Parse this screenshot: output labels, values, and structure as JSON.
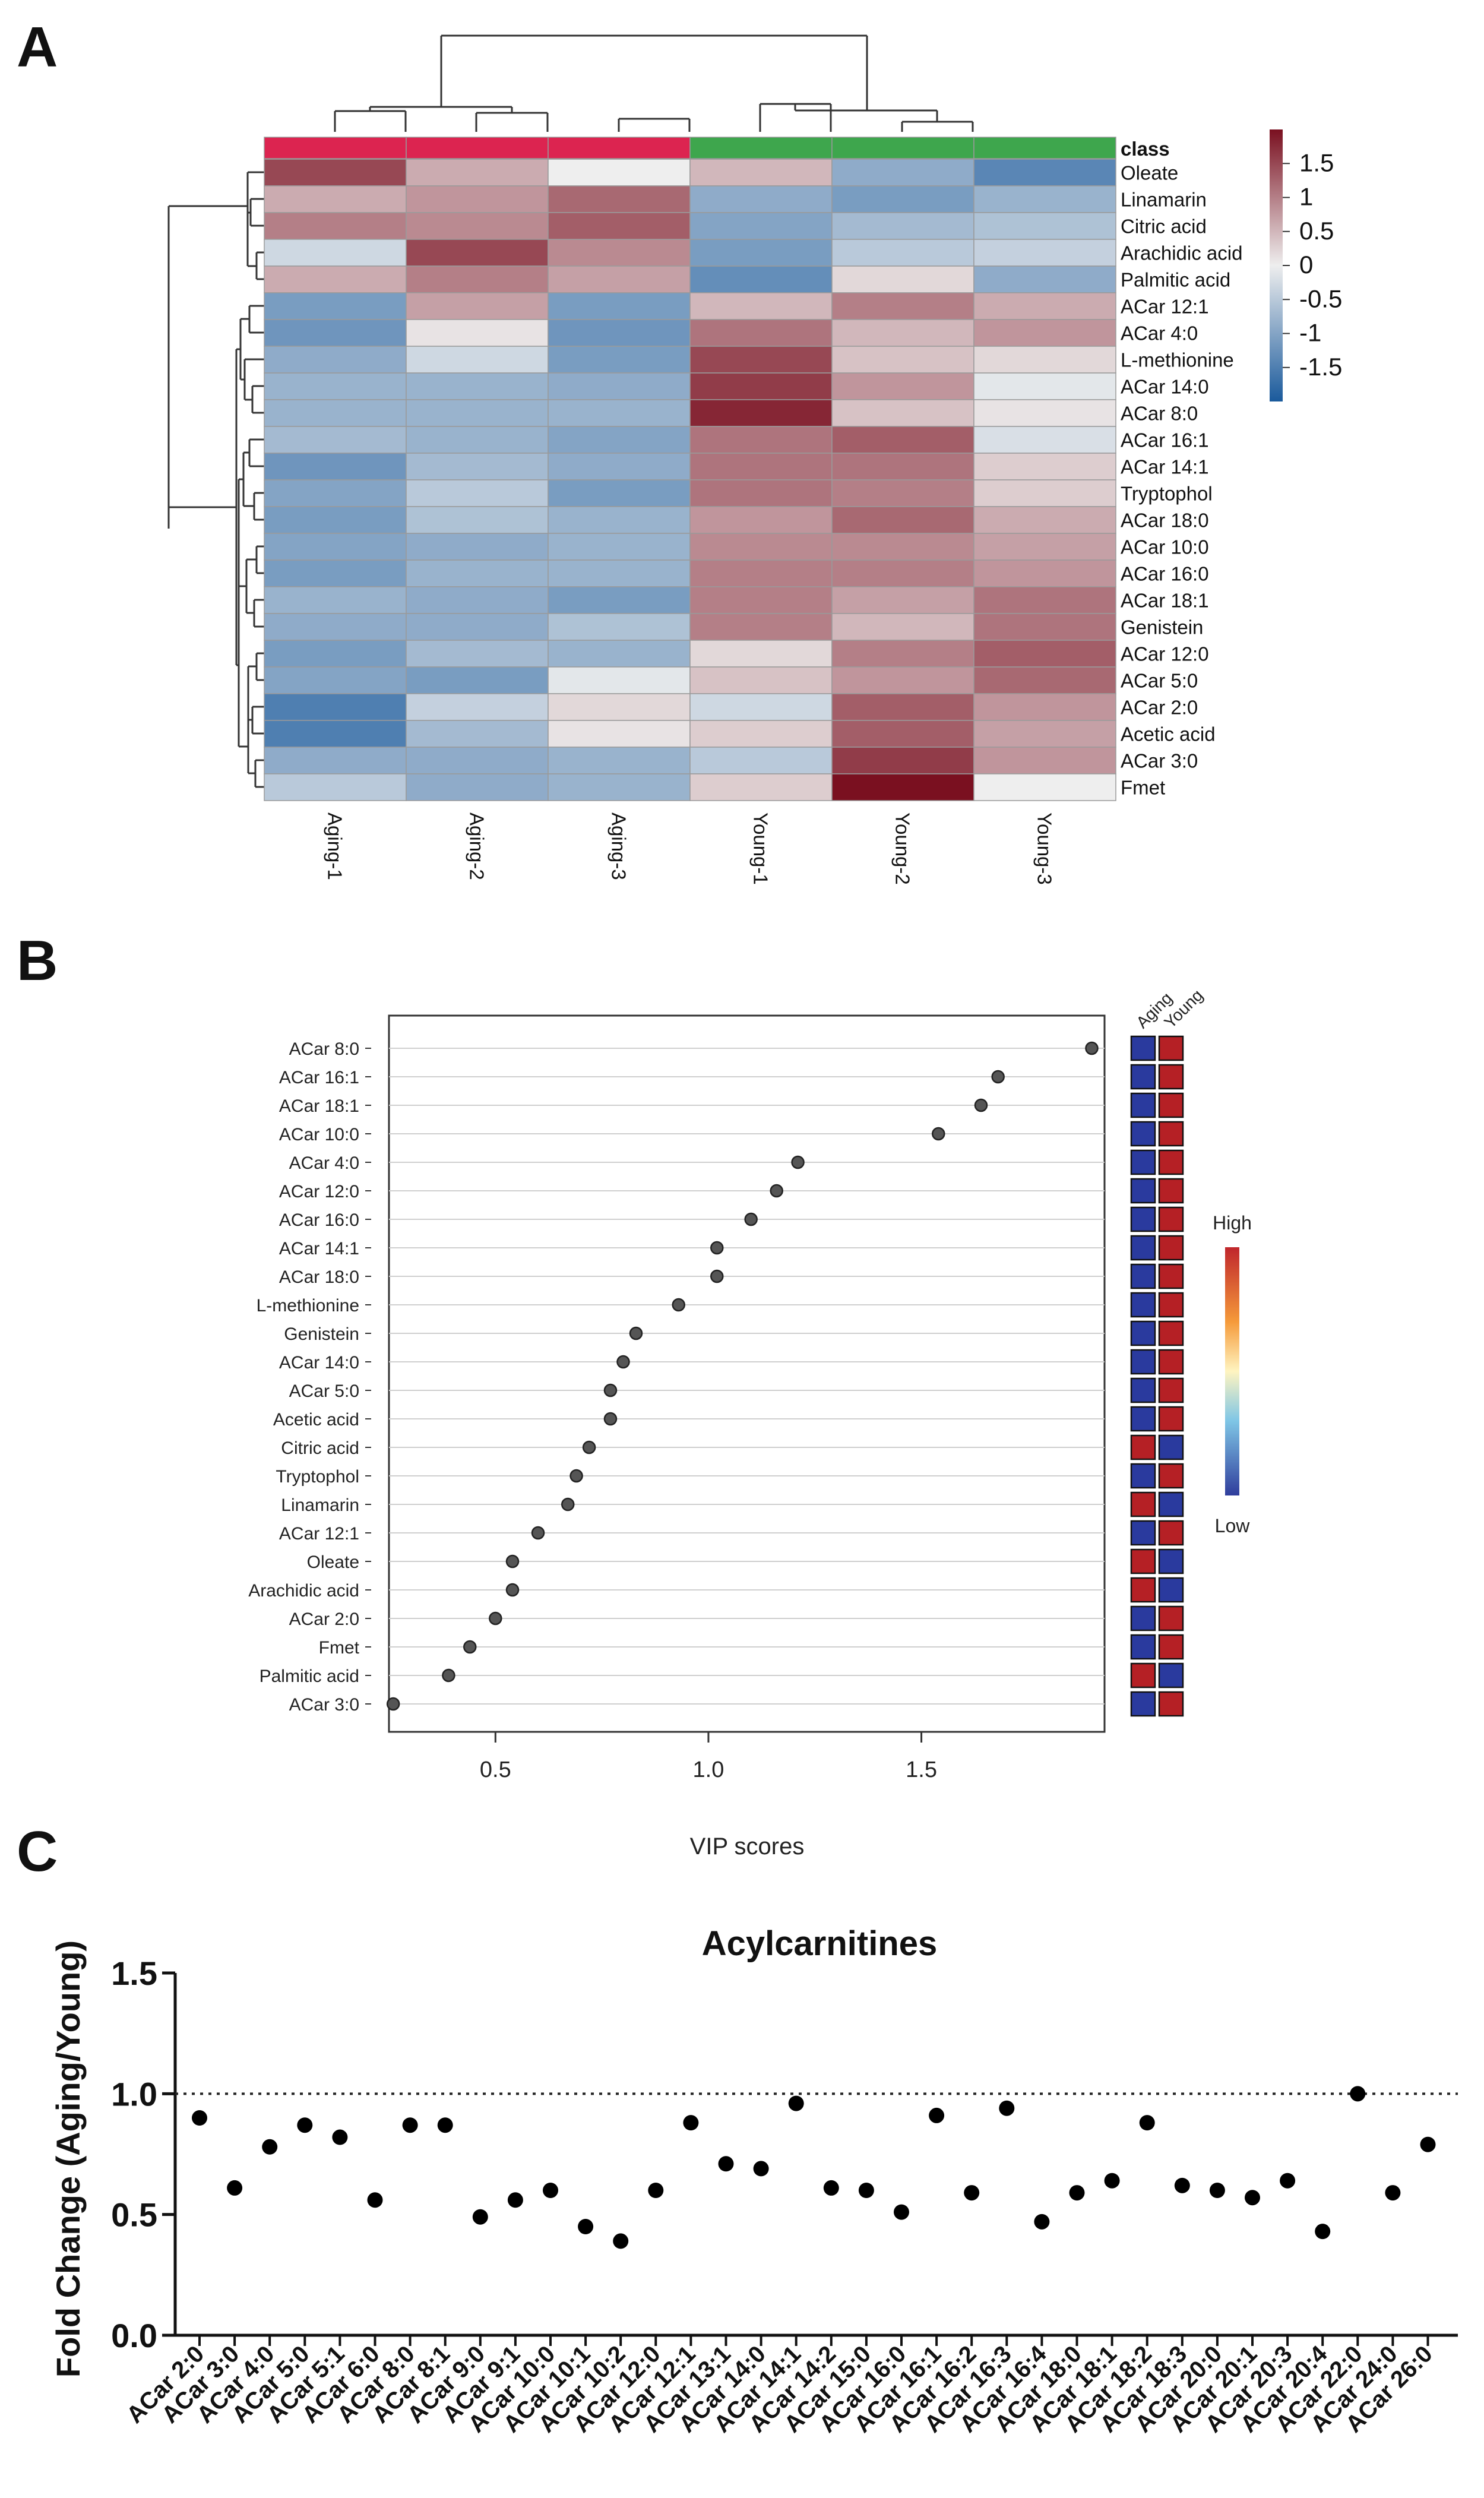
{
  "panels": {
    "A": "A",
    "B": "B",
    "C": "C"
  },
  "chart_data": [
    {
      "type": "heatmap",
      "class_label": "class",
      "columns": [
        "Aging-1",
        "Aging-2",
        "Aging-3",
        "Young-1",
        "Young-2",
        "Young-3"
      ],
      "column_classes": [
        "Aging",
        "Aging",
        "Aging",
        "Young",
        "Young",
        "Young"
      ],
      "class_colors": {
        "Aging": "#dc2450",
        "Young": "#3ea64d"
      },
      "rows": [
        "Oleate",
        "Linamarin",
        "Citric acid",
        "Arachidic acid",
        "Palmitic acid",
        "ACar 12:1",
        "ACar 4:0",
        "L-methionine",
        "ACar 14:0",
        "ACar 8:0",
        "ACar 16:1",
        "ACar 14:1",
        "Tryptophol",
        "ACar 18:0",
        "ACar 10:0",
        "ACar 16:0",
        "ACar 18:1",
        "Genistein",
        "ACar 12:0",
        "ACar 5:0",
        "ACar 2:0",
        "Acetic acid",
        "ACar 3:0",
        "Fmet"
      ],
      "values": [
        [
          1.5,
          0.6,
          0.0,
          0.5,
          -0.9,
          -1.4
        ],
        [
          0.6,
          0.8,
          1.2,
          -0.9,
          -1.1,
          -0.8
        ],
        [
          1.0,
          0.9,
          1.3,
          -1.0,
          -0.7,
          -0.6
        ],
        [
          -0.3,
          1.5,
          0.9,
          -1.1,
          -0.5,
          -0.4
        ],
        [
          0.6,
          1.0,
          0.7,
          -1.3,
          0.2,
          -0.9
        ],
        [
          -1.1,
          0.7,
          -1.1,
          0.5,
          1.0,
          0.6
        ],
        [
          -1.2,
          0.1,
          -1.2,
          1.1,
          0.5,
          0.8
        ],
        [
          -0.9,
          -0.3,
          -1.1,
          1.5,
          0.4,
          0.2
        ],
        [
          -0.8,
          -0.8,
          -0.9,
          1.6,
          0.8,
          -0.1
        ],
        [
          -0.8,
          -0.8,
          -0.8,
          1.8,
          0.4,
          0.1
        ],
        [
          -0.7,
          -0.8,
          -1.0,
          1.1,
          1.3,
          -0.2
        ],
        [
          -1.2,
          -0.7,
          -0.9,
          1.1,
          1.1,
          0.3
        ],
        [
          -1.0,
          -0.5,
          -1.1,
          1.1,
          1.0,
          0.3
        ],
        [
          -1.1,
          -0.6,
          -0.8,
          0.8,
          1.2,
          0.6
        ],
        [
          -1.0,
          -0.9,
          -0.8,
          0.9,
          0.9,
          0.7
        ],
        [
          -1.1,
          -0.8,
          -0.8,
          1.0,
          1.0,
          0.8
        ],
        [
          -0.8,
          -0.9,
          -1.1,
          1.0,
          0.7,
          1.1
        ],
        [
          -0.9,
          -0.9,
          -0.6,
          1.0,
          0.5,
          1.1
        ],
        [
          -1.1,
          -0.7,
          -0.8,
          0.2,
          1.0,
          1.3
        ],
        [
          -1.0,
          -1.1,
          -0.1,
          0.4,
          0.8,
          1.2
        ],
        [
          -1.5,
          -0.4,
          0.2,
          -0.3,
          1.3,
          0.8
        ],
        [
          -1.5,
          -0.7,
          0.1,
          0.3,
          1.3,
          0.7
        ],
        [
          -0.9,
          -0.9,
          -0.8,
          -0.5,
          1.6,
          0.8
        ],
        [
          -0.5,
          -0.9,
          -0.8,
          0.3,
          2.0,
          0.0
        ]
      ],
      "scale_ticks": [
        "1.5",
        "1",
        "0.5",
        "0",
        "-0.5",
        "-1",
        "-1.5"
      ],
      "colors": {
        "low": "#1a5a9c",
        "mid": "#eeeeee",
        "high": "#7a1020"
      }
    },
    {
      "type": "scatter",
      "xlabel": "VIP scores",
      "xlim": [
        0.25,
        1.93
      ],
      "xticks": [
        "0.5",
        "1.0",
        "1.5"
      ],
      "group_labels": [
        "Aging",
        "Young"
      ],
      "legend_high": "High",
      "legend_low": "Low",
      "colors": {
        "high": "#b52025",
        "low": "#2a3a9e",
        "point": "#555555"
      },
      "points": [
        {
          "label": "ACar 8:0",
          "vip": 1.9,
          "aging": "low",
          "young": "high"
        },
        {
          "label": "ACar 16:1",
          "vip": 1.68,
          "aging": "low",
          "young": "high"
        },
        {
          "label": "ACar 18:1",
          "vip": 1.64,
          "aging": "low",
          "young": "high"
        },
        {
          "label": "ACar 10:0",
          "vip": 1.54,
          "aging": "low",
          "young": "high"
        },
        {
          "label": "ACar 4:0",
          "vip": 1.21,
          "aging": "low",
          "young": "high"
        },
        {
          "label": "ACar 12:0",
          "vip": 1.16,
          "aging": "low",
          "young": "high"
        },
        {
          "label": "ACar 16:0",
          "vip": 1.1,
          "aging": "low",
          "young": "high"
        },
        {
          "label": "ACar 14:1",
          "vip": 1.02,
          "aging": "low",
          "young": "high"
        },
        {
          "label": "ACar 18:0",
          "vip": 1.02,
          "aging": "low",
          "young": "high"
        },
        {
          "label": "L-methionine",
          "vip": 0.93,
          "aging": "low",
          "young": "high"
        },
        {
          "label": "Genistein",
          "vip": 0.83,
          "aging": "low",
          "young": "high"
        },
        {
          "label": "ACar 14:0",
          "vip": 0.8,
          "aging": "low",
          "young": "high"
        },
        {
          "label": "ACar 5:0",
          "vip": 0.77,
          "aging": "low",
          "young": "high"
        },
        {
          "label": "Acetic acid",
          "vip": 0.77,
          "aging": "low",
          "young": "high"
        },
        {
          "label": "Citric acid",
          "vip": 0.72,
          "aging": "high",
          "young": "low"
        },
        {
          "label": "Tryptophol",
          "vip": 0.69,
          "aging": "low",
          "young": "high"
        },
        {
          "label": "Linamarin",
          "vip": 0.67,
          "aging": "high",
          "young": "low"
        },
        {
          "label": "ACar 12:1",
          "vip": 0.6,
          "aging": "low",
          "young": "high"
        },
        {
          "label": "Oleate",
          "vip": 0.54,
          "aging": "high",
          "young": "low"
        },
        {
          "label": "Arachidic acid",
          "vip": 0.54,
          "aging": "high",
          "young": "low"
        },
        {
          "label": "ACar 2:0",
          "vip": 0.5,
          "aging": "low",
          "young": "high"
        },
        {
          "label": "Fmet",
          "vip": 0.44,
          "aging": "low",
          "young": "high"
        },
        {
          "label": "Palmitic acid",
          "vip": 0.39,
          "aging": "high",
          "young": "low"
        },
        {
          "label": "ACar 3:0",
          "vip": 0.26,
          "aging": "low",
          "young": "high"
        }
      ]
    },
    {
      "type": "scatter",
      "title": "Acylcarnitines",
      "ylabel": "Fold Change (Aging/Young)",
      "ylim": [
        0,
        1.5
      ],
      "yticks": [
        "0.0",
        "0.5",
        "1.0",
        "1.5"
      ],
      "reference_line": 1.0,
      "categories": [
        "ACar 2:0",
        "ACar 3:0",
        "ACar 4:0",
        "ACar 5:0",
        "ACar 5:1",
        "ACar 6:0",
        "ACar 8:0",
        "ACar 8:1",
        "ACar 9:0",
        "ACar 9:1",
        "ACar 10:0",
        "ACar 10:1",
        "ACar 10:2",
        "ACar 12:0",
        "ACar 12:1",
        "ACar 13:1",
        "ACar 14:0",
        "ACar 14:1",
        "ACar 14:2",
        "ACar 15:0",
        "ACar 16:0",
        "ACar 16:1",
        "ACar 16:2",
        "ACar 16:3",
        "ACar 16:4",
        "ACar 18:0",
        "ACar 18:1",
        "ACar 18:2",
        "ACar 18:3",
        "ACar 20:0",
        "ACar 20:1",
        "ACar 20:3",
        "ACar 20:4",
        "ACar 22:0",
        "ACar 24:0",
        "ACar 26:0"
      ],
      "values": [
        0.9,
        0.61,
        0.78,
        0.87,
        0.82,
        0.56,
        0.87,
        0.87,
        0.49,
        0.56,
        0.6,
        0.45,
        0.39,
        0.6,
        0.88,
        0.71,
        0.69,
        0.96,
        0.61,
        0.6,
        0.51,
        0.91,
        0.59,
        0.94,
        0.47,
        0.59,
        0.64,
        0.88,
        0.62,
        0.6,
        0.57,
        0.64,
        0.43,
        1.0,
        0.59,
        0.79
      ]
    }
  ]
}
